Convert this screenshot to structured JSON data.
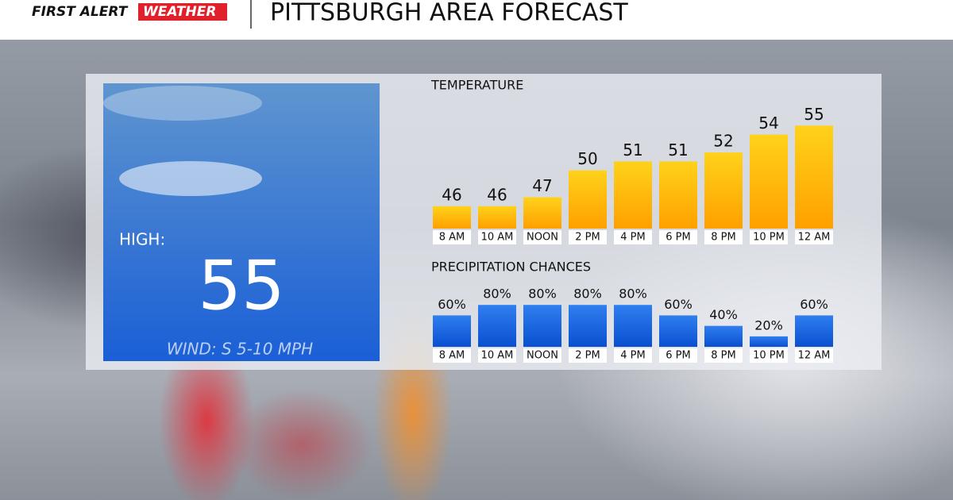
{
  "header": {
    "brand_first": "FIRST ALERT",
    "brand_weather": "WEATHER",
    "title": "PITTSBURGH AREA FORECAST"
  },
  "summary": {
    "high_label": "HIGH:",
    "high": 55,
    "wind": "WIND: S 5-10 MPH"
  },
  "chart_data": [
    {
      "type": "bar",
      "title": "TEMPERATURE",
      "categories": [
        "8 AM",
        "10 AM",
        "NOON",
        "2 PM",
        "4 PM",
        "6 PM",
        "8 PM",
        "10 PM",
        "12 AM"
      ],
      "values": [
        46,
        46,
        47,
        50,
        51,
        51,
        52,
        54,
        55
      ],
      "color": "#ffb300",
      "ylim": [
        43.5,
        56
      ]
    },
    {
      "type": "bar",
      "title": "PRECIPITATION CHANCES",
      "categories": [
        "8 AM",
        "10 AM",
        "NOON",
        "2 PM",
        "4 PM",
        "6 PM",
        "8 PM",
        "10 PM",
        "12 AM"
      ],
      "values": [
        60,
        80,
        80,
        80,
        80,
        60,
        40,
        20,
        60
      ],
      "value_labels": [
        "60%",
        "80%",
        "80%",
        "80%",
        "80%",
        "60%",
        "40%",
        "20%",
        "60%"
      ],
      "color": "#1565e0",
      "ylim": [
        0,
        100
      ]
    }
  ]
}
